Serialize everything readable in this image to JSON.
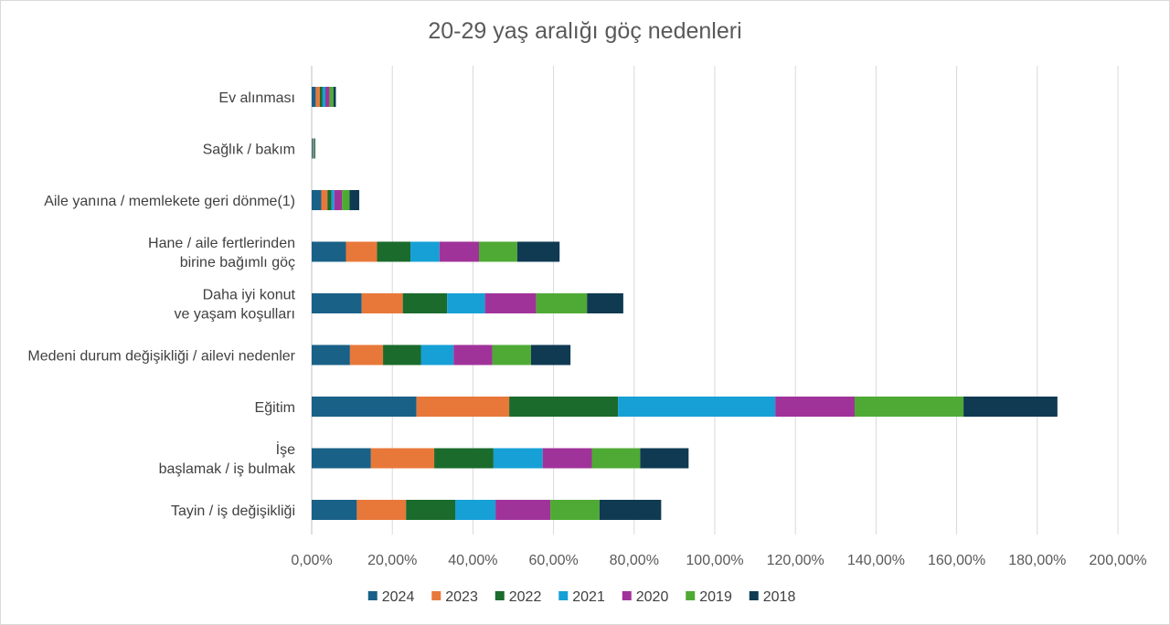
{
  "chart_data": {
    "type": "bar",
    "orientation": "horizontal",
    "stacked": true,
    "title": "20-29 yaş aralığı göç nedenleri",
    "xlabel": "",
    "ylabel": "",
    "xlim": [
      0,
      2.0
    ],
    "x_ticks": [
      0,
      0.2,
      0.4,
      0.6,
      0.8,
      1.0,
      1.2,
      1.4,
      1.6,
      1.8,
      2.0
    ],
    "x_tick_labels": [
      "0,00%",
      "20,00%",
      "40,00%",
      "60,00%",
      "80,00%",
      "100,00%",
      "120,00%",
      "140,00%",
      "160,00%",
      "180,00%",
      "200,00%"
    ],
    "grid": "vertical",
    "legend_position": "bottom",
    "categories": [
      [
        "Ev alınması"
      ],
      [
        "Sağlık / bakım"
      ],
      [
        "Aile yanına / memlekete geri dönme(1)"
      ],
      [
        "Hane / aile fertlerinden",
        "birine bağımlı göç"
      ],
      [
        "Daha iyi konut",
        "ve yaşam koşulları"
      ],
      [
        "Medeni durum değişikliği / ailevi nedenler"
      ],
      [
        "Eğitim"
      ],
      [
        "İşe",
        "başlamak / iş bulmak"
      ],
      [
        "Tayin / iş değişikliği"
      ]
    ],
    "series": [
      {
        "name": "2024",
        "color": "#1a6187",
        "values": [
          0.01,
          0.002,
          0.024,
          0.085,
          0.124,
          0.095,
          0.26,
          0.147,
          0.112
        ]
      },
      {
        "name": "2023",
        "color": "#e8783a",
        "values": [
          0.01,
          0.001,
          0.015,
          0.077,
          0.102,
          0.082,
          0.23,
          0.157,
          0.122
        ]
      },
      {
        "name": "2022",
        "color": "#1b6b2c",
        "values": [
          0.007,
          0.001,
          0.01,
          0.083,
          0.11,
          0.094,
          0.27,
          0.147,
          0.122
        ]
      },
      {
        "name": "2021",
        "color": "#16a0d6",
        "values": [
          0.007,
          0.001,
          0.007,
          0.072,
          0.094,
          0.081,
          0.39,
          0.122,
          0.1
        ]
      },
      {
        "name": "2020",
        "color": "#a0339a",
        "values": [
          0.01,
          0.001,
          0.019,
          0.098,
          0.127,
          0.096,
          0.197,
          0.122,
          0.136
        ]
      },
      {
        "name": "2019",
        "color": "#4faa35",
        "values": [
          0.01,
          0.002,
          0.019,
          0.095,
          0.126,
          0.096,
          0.27,
          0.12,
          0.122
        ]
      },
      {
        "name": "2018",
        "color": "#0f3a52",
        "values": [
          0.006,
          0.001,
          0.024,
          0.105,
          0.09,
          0.098,
          0.233,
          0.12,
          0.153
        ]
      }
    ]
  }
}
